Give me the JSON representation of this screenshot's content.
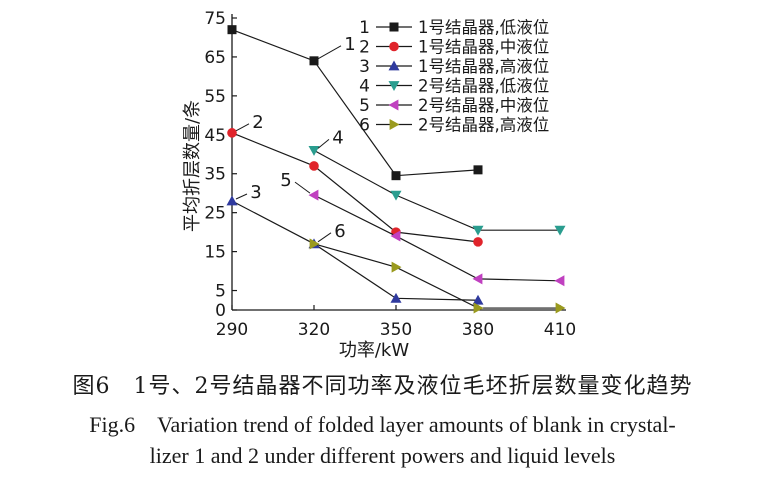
{
  "chart_data": {
    "type": "line",
    "xlabel": "功率/kW",
    "ylabel": "平均折层数量/条",
    "x_ticks": [
      290,
      320,
      350,
      380,
      410
    ],
    "y_ticks": [
      0,
      5,
      15,
      25,
      35,
      45,
      55,
      65,
      75
    ],
    "xlim": [
      290,
      410
    ],
    "ylim": [
      0,
      75
    ],
    "grid": false,
    "legend_position": "top-right",
    "series": [
      {
        "id": "1",
        "name": "1号结晶器,低液位",
        "marker": "square",
        "color": "#1a1a1a",
        "x": [
          290,
          320,
          350,
          380
        ],
        "y": [
          72,
          64,
          34.5,
          36
        ]
      },
      {
        "id": "2",
        "name": "1号结晶器,中液位",
        "marker": "circle",
        "color": "#e0242b",
        "x": [
          290,
          320,
          350,
          380
        ],
        "y": [
          45.5,
          37,
          20,
          17.5
        ]
      },
      {
        "id": "3",
        "name": "1号结晶器,高液位",
        "marker": "triangle-up",
        "color": "#2f3a9e",
        "x": [
          290,
          320,
          350,
          380
        ],
        "y": [
          28,
          17,
          3,
          2.5
        ]
      },
      {
        "id": "4",
        "name": "2号结晶器,低液位",
        "marker": "triangle-down",
        "color": "#2a9d8f",
        "x": [
          320,
          350,
          380,
          410
        ],
        "y": [
          41,
          29.5,
          20.5,
          20.5
        ]
      },
      {
        "id": "5",
        "name": "2号结晶器,中液位",
        "marker": "triangle-left",
        "color": "#c040c0",
        "x": [
          320,
          350,
          380,
          410
        ],
        "y": [
          29.5,
          19,
          8,
          7.5
        ]
      },
      {
        "id": "6",
        "name": "2号结晶器,高液位",
        "marker": "triangle-right",
        "color": "#9a9a1e",
        "x": [
          320,
          350,
          380,
          410
        ],
        "y": [
          17,
          11,
          0.5,
          0.5
        ]
      }
    ],
    "annotations": [
      {
        "text": "1",
        "series": "1",
        "point": 1
      },
      {
        "text": "2",
        "series": "2",
        "point": 0
      },
      {
        "text": "3",
        "series": "3",
        "point": 0
      },
      {
        "text": "4",
        "series": "4",
        "point": 0
      },
      {
        "text": "5",
        "series": "5",
        "point": 0
      },
      {
        "text": "6",
        "series": "6",
        "point": 0
      }
    ]
  },
  "caption": {
    "zh": "图6　1号、2号结晶器不同功率及液位毛坯折层数量变化趋势",
    "en_line1": "Fig.6　Variation trend of folded layer amounts of blank in crystal-",
    "en_line2": "lizer 1 and 2 under different powers and liquid levels"
  }
}
